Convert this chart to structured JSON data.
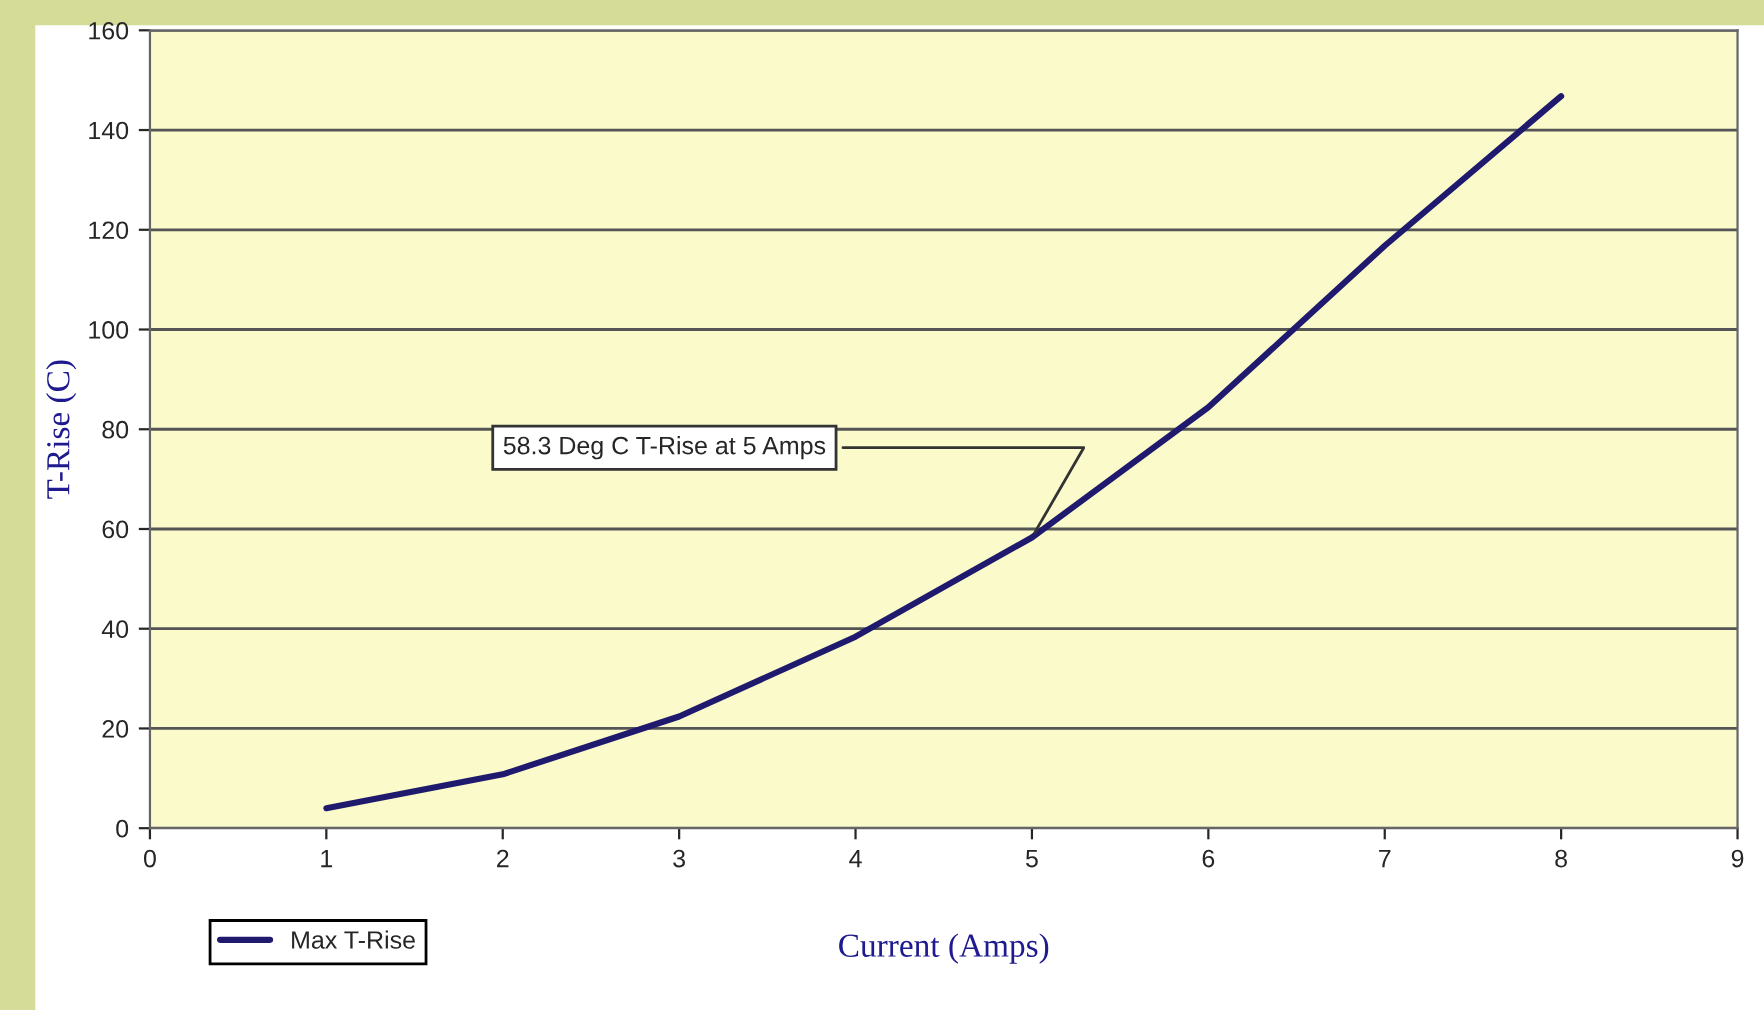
{
  "chart_data": {
    "type": "line",
    "xlabel": "Current (Amps)",
    "ylabel": "T-Rise (C)",
    "x": [
      1,
      2,
      3,
      4,
      5,
      6,
      7,
      8
    ],
    "series": [
      {
        "name": "Max T-Rise",
        "color": "#1f1a6e",
        "values": [
          4,
          10.8,
          22.4,
          38.4,
          58.3,
          84.4,
          116.8,
          146.8
        ]
      }
    ],
    "xlim": [
      0,
      9
    ],
    "xticks": [
      0,
      1,
      2,
      3,
      4,
      5,
      6,
      7,
      8,
      9
    ],
    "ylim": [
      0,
      160
    ],
    "yticks": [
      0,
      20,
      40,
      60,
      80,
      100,
      120,
      140,
      160
    ],
    "grid": "y",
    "legend": "bottom left",
    "marker": "none",
    "line_style": "solid",
    "annotations": [
      {
        "text": "58.3 Deg C T-Rise at 5 Amps",
        "x": 5,
        "y": 58.3
      }
    ]
  }
}
